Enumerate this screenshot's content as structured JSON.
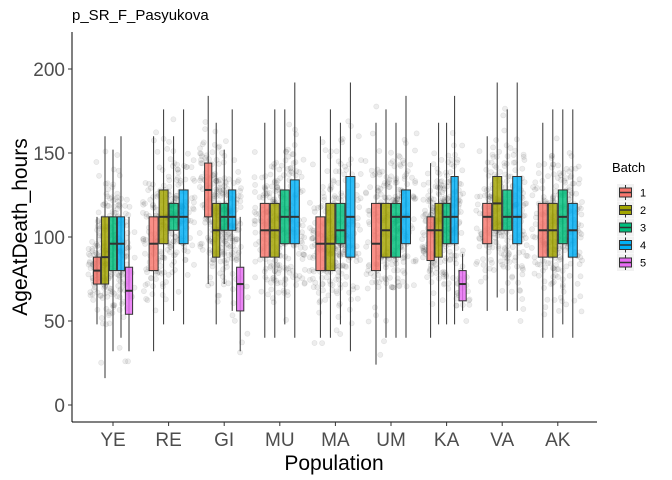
{
  "chart_data": {
    "type": "boxplot",
    "title": "p_SR_F_Pasyukova",
    "xlabel": "Population",
    "ylabel": "AgeAtDeath_hours",
    "ylim": [
      -10,
      220
    ],
    "yticks": [
      0,
      50,
      100,
      150,
      200
    ],
    "categories": [
      "YE",
      "RE",
      "GI",
      "MU",
      "MA",
      "UM",
      "KA",
      "VA",
      "AK"
    ],
    "legend": {
      "title": "Batch",
      "position": "right",
      "items": [
        {
          "label": "1",
          "color": "#F8766D"
        },
        {
          "label": "2",
          "color": "#A3A500"
        },
        {
          "label": "3",
          "color": "#00BF7D"
        },
        {
          "label": "4",
          "color": "#00B0F6"
        },
        {
          "label": "5",
          "color": "#E76BF3"
        }
      ]
    },
    "jitter_points": true,
    "groups": [
      {
        "category": "YE",
        "boxes": [
          {
            "batch": "1",
            "min": 48,
            "q1": 72,
            "median": 80,
            "q3": 88,
            "max": 112
          },
          {
            "batch": "2",
            "min": 16,
            "q1": 72,
            "median": 88,
            "q3": 112,
            "max": 160
          },
          {
            "batch": "3",
            "min": 32,
            "q1": 80,
            "median": 96,
            "q3": 112,
            "max": 152
          },
          {
            "batch": "4",
            "min": 40,
            "q1": 80,
            "median": 96,
            "q3": 112,
            "max": 160
          },
          {
            "batch": "5",
            "min": 32,
            "q1": 54,
            "median": 68,
            "q3": 82,
            "max": 112
          }
        ]
      },
      {
        "category": "RE",
        "boxes": [
          {
            "batch": "1",
            "min": 32,
            "q1": 80,
            "median": 96,
            "q3": 112,
            "max": 160
          },
          {
            "batch": "2",
            "min": 48,
            "q1": 96,
            "median": 112,
            "q3": 128,
            "max": 176
          },
          {
            "batch": "3",
            "min": 56,
            "q1": 104,
            "median": 112,
            "q3": 120,
            "max": 160
          },
          {
            "batch": "4",
            "min": 48,
            "q1": 96,
            "median": 112,
            "q3": 128,
            "max": 176
          }
        ]
      },
      {
        "category": "GI",
        "boxes": [
          {
            "batch": "1",
            "min": 72,
            "q1": 112,
            "median": 128,
            "q3": 144,
            "max": 184
          },
          {
            "batch": "2",
            "min": 48,
            "q1": 88,
            "median": 104,
            "q3": 120,
            "max": 168
          },
          {
            "batch": "3",
            "min": 72,
            "q1": 104,
            "median": 112,
            "q3": 120,
            "max": 152
          },
          {
            "batch": "4",
            "min": 56,
            "q1": 104,
            "median": 112,
            "q3": 128,
            "max": 176
          },
          {
            "batch": "5",
            "min": 32,
            "q1": 56,
            "median": 72,
            "q3": 82,
            "max": 112
          }
        ]
      },
      {
        "category": "MU",
        "boxes": [
          {
            "batch": "1",
            "min": 40,
            "q1": 88,
            "median": 104,
            "q3": 120,
            "max": 168
          },
          {
            "batch": "2",
            "min": 40,
            "q1": 88,
            "median": 104,
            "q3": 120,
            "max": 176
          },
          {
            "batch": "3",
            "min": 48,
            "q1": 96,
            "median": 112,
            "q3": 128,
            "max": 176
          },
          {
            "batch": "4",
            "min": 40,
            "q1": 96,
            "median": 112,
            "q3": 134,
            "max": 192
          }
        ]
      },
      {
        "category": "MA",
        "boxes": [
          {
            "batch": "1",
            "min": 40,
            "q1": 80,
            "median": 96,
            "q3": 112,
            "max": 160
          },
          {
            "batch": "2",
            "min": 40,
            "q1": 80,
            "median": 96,
            "q3": 120,
            "max": 176
          },
          {
            "batch": "3",
            "min": 48,
            "q1": 96,
            "median": 104,
            "q3": 120,
            "max": 168
          },
          {
            "batch": "4",
            "min": 32,
            "q1": 88,
            "median": 112,
            "q3": 136,
            "max": 192
          }
        ]
      },
      {
        "category": "UM",
        "boxes": [
          {
            "batch": "1",
            "min": 24,
            "q1": 80,
            "median": 96,
            "q3": 120,
            "max": 168
          },
          {
            "batch": "2",
            "min": 40,
            "q1": 88,
            "median": 104,
            "q3": 120,
            "max": 176
          },
          {
            "batch": "3",
            "min": 40,
            "q1": 88,
            "median": 112,
            "q3": 120,
            "max": 168
          },
          {
            "batch": "4",
            "min": 40,
            "q1": 96,
            "median": 112,
            "q3": 128,
            "max": 184
          }
        ]
      },
      {
        "category": "KA",
        "boxes": [
          {
            "batch": "1",
            "min": 40,
            "q1": 86,
            "median": 104,
            "q3": 112,
            "max": 144
          },
          {
            "batch": "2",
            "min": 48,
            "q1": 88,
            "median": 104,
            "q3": 120,
            "max": 168
          },
          {
            "batch": "3",
            "min": 48,
            "q1": 96,
            "median": 112,
            "q3": 120,
            "max": 168
          },
          {
            "batch": "4",
            "min": 48,
            "q1": 96,
            "median": 112,
            "q3": 136,
            "max": 184
          },
          {
            "batch": "5",
            "min": 56,
            "q1": 62,
            "median": 72,
            "q3": 80,
            "max": 90
          }
        ]
      },
      {
        "category": "VA",
        "boxes": [
          {
            "batch": "1",
            "min": 56,
            "q1": 96,
            "median": 112,
            "q3": 120,
            "max": 160
          },
          {
            "batch": "2",
            "min": 64,
            "q1": 104,
            "median": 120,
            "q3": 136,
            "max": 192
          },
          {
            "batch": "3",
            "min": 56,
            "q1": 104,
            "median": 112,
            "q3": 128,
            "max": 176
          },
          {
            "batch": "4",
            "min": 56,
            "q1": 96,
            "median": 112,
            "q3": 136,
            "max": 192
          }
        ]
      },
      {
        "category": "AK",
        "boxes": [
          {
            "batch": "1",
            "min": 40,
            "q1": 88,
            "median": 104,
            "q3": 120,
            "max": 168
          },
          {
            "batch": "2",
            "min": 40,
            "q1": 88,
            "median": 104,
            "q3": 120,
            "max": 176
          },
          {
            "batch": "3",
            "min": 48,
            "q1": 96,
            "median": 112,
            "q3": 128,
            "max": 176
          },
          {
            "batch": "4",
            "min": 40,
            "q1": 88,
            "median": 104,
            "q3": 120,
            "max": 176
          }
        ]
      }
    ]
  }
}
